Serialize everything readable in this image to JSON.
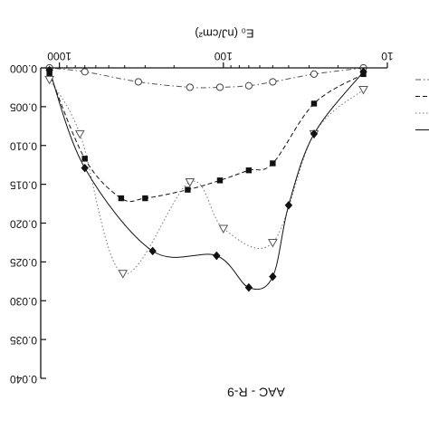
{
  "chart_data": {
    "type": "scatter",
    "title": "",
    "xlabel": "E₀ (nJ/cm²)",
    "ylabel": "",
    "caption": "AAC - R-9",
    "x_scale": "log",
    "x_axis_position": "top",
    "x_tick_labels": [
      "10",
      "100",
      "1000"
    ],
    "x_ticks": [
      10,
      100,
      1000
    ],
    "y_tick_labels": [
      "0.000",
      "0.005",
      "0.010",
      "0.015",
      "0.020",
      "0.025",
      "0.030",
      "0.035",
      "0.040"
    ],
    "y_ticks": [
      0,
      0.005,
      0.01,
      0.015,
      0.02,
      0.025,
      0.03,
      0.035,
      0.04
    ],
    "xlim": [
      10,
      1300
    ],
    "ylim": [
      0,
      0.04
    ],
    "y_inverted": true,
    "grid": false,
    "legend_position": "right",
    "series": [
      {
        "marker": "circle-open",
        "line": "dash-dot",
        "color": "#555555",
        "points": [
          [
            14,
            0.0
          ],
          [
            28,
            0.0008
          ],
          [
            50,
            0.0018
          ],
          [
            70,
            0.0023
          ],
          [
            105,
            0.0025
          ],
          [
            160,
            0.0025
          ],
          [
            330,
            0.0018
          ],
          [
            700,
            0.0005
          ],
          [
            1150,
            0.0
          ]
        ]
      },
      {
        "marker": "square-filled",
        "line": "dash",
        "color": "#111111",
        "points": [
          [
            14,
            0.0008
          ],
          [
            28,
            0.0046
          ],
          [
            50,
            0.0123
          ],
          [
            70,
            0.0132
          ],
          [
            105,
            0.0145
          ],
          [
            165,
            0.0157
          ],
          [
            300,
            0.0168
          ],
          [
            420,
            0.0168
          ],
          [
            700,
            0.0117
          ],
          [
            1150,
            0.0007
          ]
        ]
      },
      {
        "marker": "triangle-down-open",
        "line": "dot",
        "color": "#777777",
        "points": [
          [
            14,
            0.0028
          ],
          [
            28,
            0.0085
          ],
          [
            50,
            0.0225
          ],
          [
            100,
            0.0207
          ],
          [
            160,
            0.0147
          ],
          [
            410,
            0.0265
          ],
          [
            750,
            0.0085
          ],
          [
            1150,
            0.0015
          ]
        ]
      },
      {
        "marker": "diamond-filled",
        "line": "solid",
        "color": "#111111",
        "points": [
          [
            14,
            0.0005
          ],
          [
            28,
            0.0085
          ],
          [
            40,
            0.0177
          ],
          [
            50,
            0.0269
          ],
          [
            70,
            0.0283
          ],
          [
            110,
            0.0242
          ],
          [
            270,
            0.0236
          ],
          [
            700,
            0.0129
          ],
          [
            1150,
            0.0003
          ]
        ]
      }
    ]
  }
}
